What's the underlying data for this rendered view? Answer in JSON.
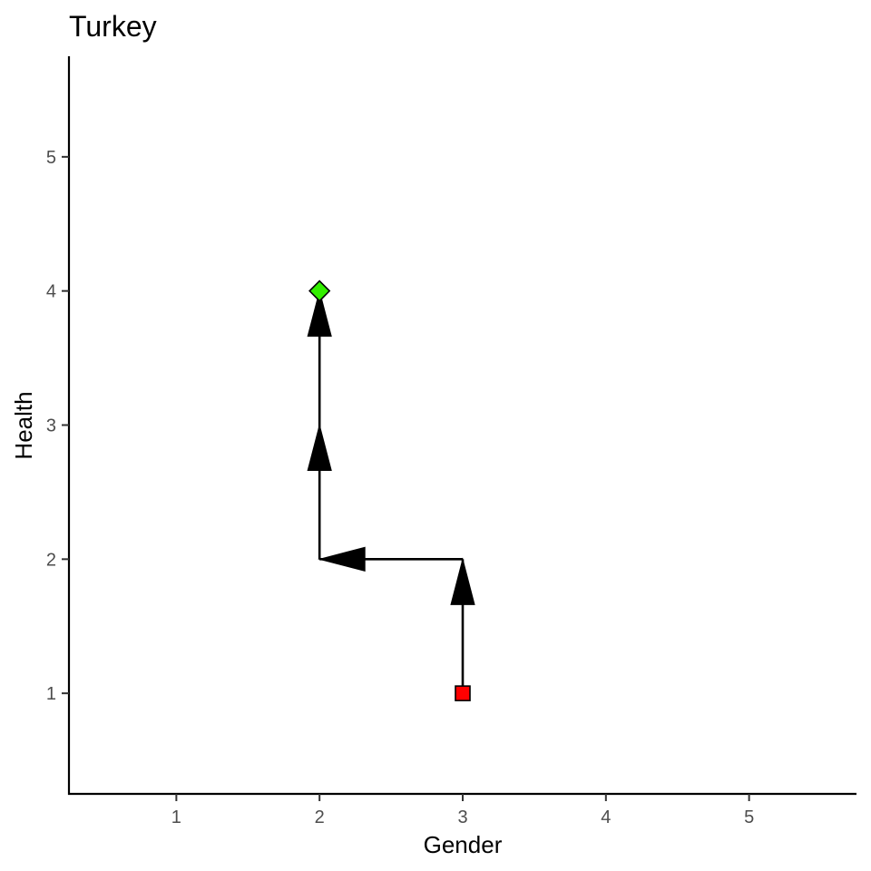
{
  "chart_data": {
    "type": "line",
    "title": "Turkey",
    "xlabel": "Gender",
    "ylabel": "Health",
    "xlim": [
      0.25,
      5.75
    ],
    "ylim": [
      0.25,
      5.75
    ],
    "xticks": [
      1,
      2,
      3,
      4,
      5
    ],
    "yticks": [
      1,
      2,
      3,
      4,
      5
    ],
    "grid": false,
    "series": [
      {
        "points": [
          {
            "x": 3,
            "y": 1
          },
          {
            "x": 3,
            "y": 2
          },
          {
            "x": 2,
            "y": 2
          },
          {
            "x": 2,
            "y": 3
          },
          {
            "x": 2,
            "y": 4
          }
        ]
      }
    ],
    "start_marker": {
      "x": 3,
      "y": 1,
      "shape": "square",
      "color": "#ff0000"
    },
    "end_marker": {
      "x": 2,
      "y": 4,
      "shape": "diamond",
      "color": "#33ee00"
    },
    "line_color": "#000000"
  }
}
